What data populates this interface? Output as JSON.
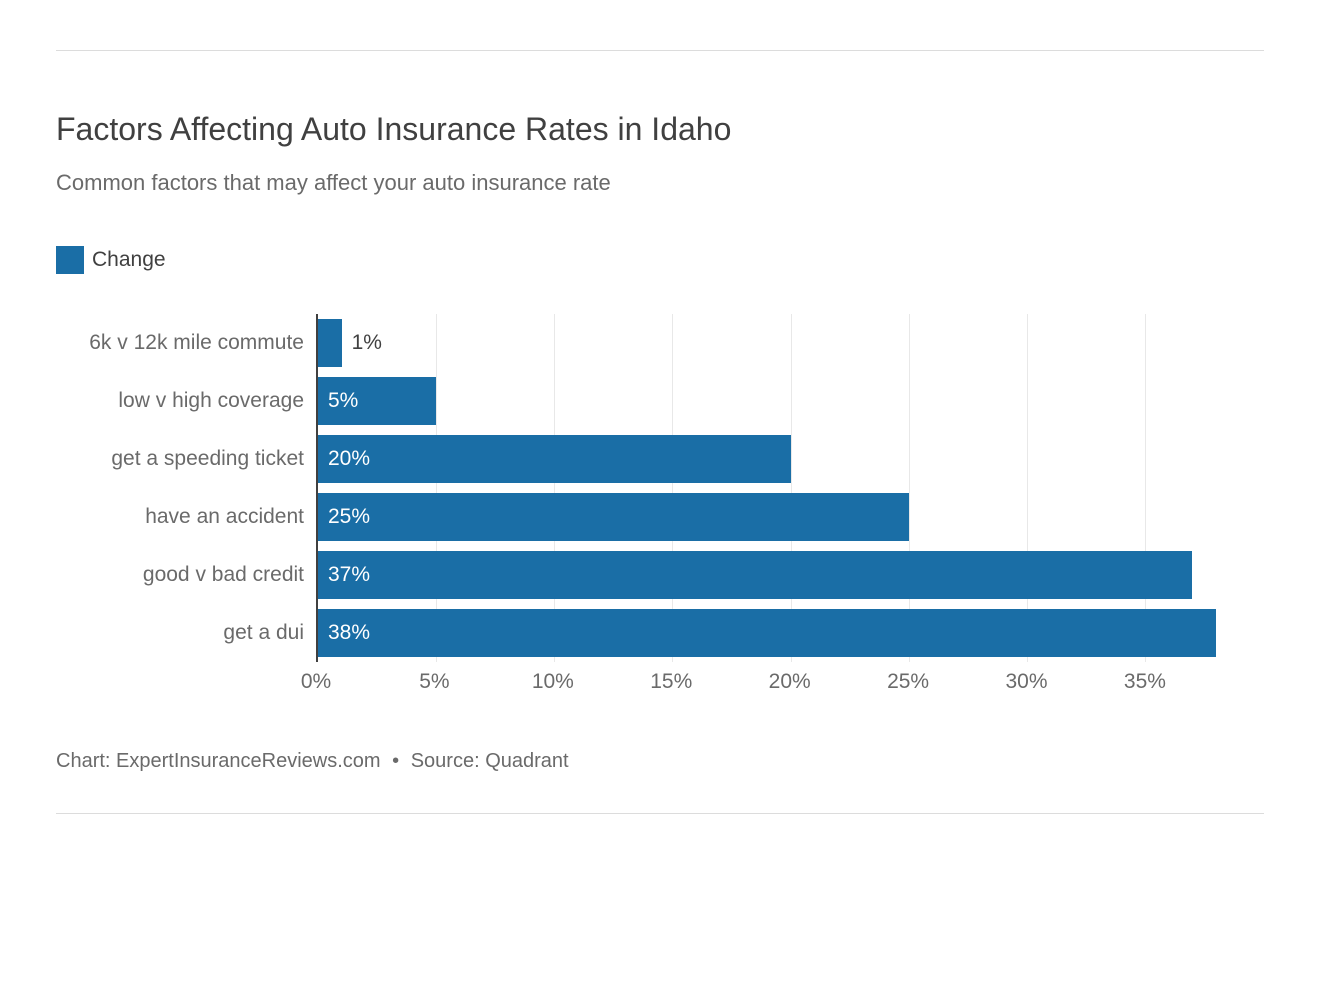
{
  "chart": {
    "type": "bar",
    "title": "Factors Affecting Auto Insurance Rates in Idaho",
    "subtitle": "Common factors that may affect your auto insurance rate",
    "legend_label": "Change",
    "bar_color": "#1a6ea6",
    "axis_line_color": "#404040",
    "grid_color": "#e8e8e8",
    "background_color": "#ffffff",
    "title_color": "#404040",
    "text_color": "#6a6a6a",
    "inside_label_color": "#ffffff",
    "title_fontsize": 32,
    "subtitle_fontsize": 22,
    "label_fontsize": 21,
    "xlim": [
      0,
      38
    ],
    "xtick_step": 5,
    "xticks": [
      0,
      5,
      10,
      15,
      20,
      25,
      30,
      35
    ],
    "xtick_labels": [
      "0%",
      "5%",
      "10%",
      "15%",
      "20%",
      "25%",
      "30%",
      "35%"
    ],
    "categories": [
      "6k v 12k mile commute",
      "low v high coverage",
      "get a speeding ticket",
      "have an accident",
      "good v bad credit",
      "get a dui"
    ],
    "values": [
      1,
      5,
      20,
      25,
      37,
      38
    ],
    "value_labels": [
      "1%",
      "5%",
      "20%",
      "25%",
      "37%",
      "38%"
    ],
    "label_inside": [
      false,
      true,
      true,
      true,
      true,
      true
    ],
    "attribution_chart": "Chart: ExpertInsuranceReviews.com",
    "attribution_source": "Source: Quadrant"
  }
}
